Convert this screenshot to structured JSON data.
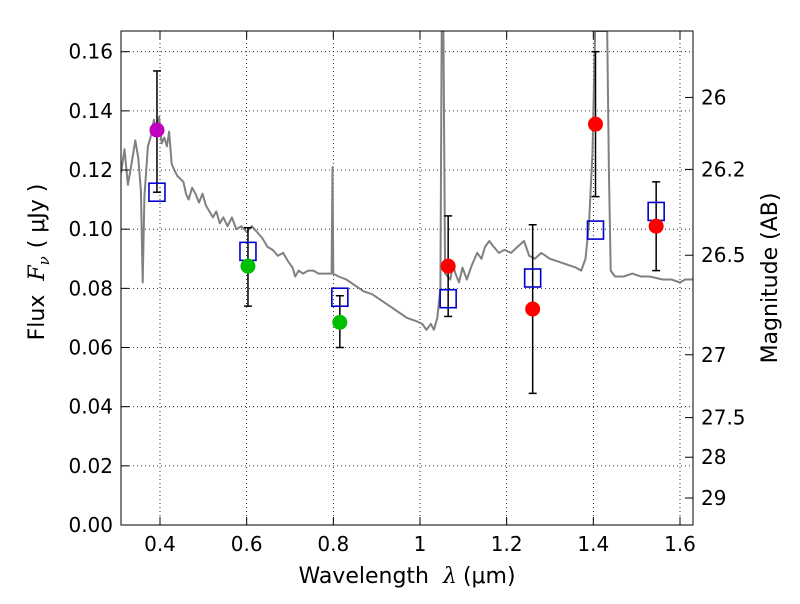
{
  "chart_data": {
    "type": "scatter",
    "xlabel_prefix": "Wavelength",
    "xlabel_var": "λ",
    "xlabel_unit": "(μm)",
    "ylabel_prefix": "Flux",
    "ylabel_var": "F",
    "ylabel_sub": "ν",
    "ylabel_unit": "( μJy )",
    "y2label": "Magnitude (AB)",
    "xlim": [
      0.31,
      1.63
    ],
    "ylim": [
      0.0,
      0.167
    ],
    "grid": true,
    "x_ticks": [
      {
        "v": 0.4,
        "label": "0.4"
      },
      {
        "v": 0.6,
        "label": "0.6"
      },
      {
        "v": 0.8,
        "label": "0.8"
      },
      {
        "v": 1.0,
        "label": "1"
      },
      {
        "v": 1.2,
        "label": "1.2"
      },
      {
        "v": 1.4,
        "label": "1.4"
      },
      {
        "v": 1.6,
        "label": "1.6"
      }
    ],
    "y_ticks": [
      {
        "v": 0.0,
        "label": "0.00"
      },
      {
        "v": 0.02,
        "label": "0.02"
      },
      {
        "v": 0.04,
        "label": "0.04"
      },
      {
        "v": 0.06,
        "label": "0.06"
      },
      {
        "v": 0.08,
        "label": "0.08"
      },
      {
        "v": 0.1,
        "label": "0.10"
      },
      {
        "v": 0.12,
        "label": "0.12"
      },
      {
        "v": 0.14,
        "label": "0.14"
      },
      {
        "v": 0.16,
        "label": "0.16"
      }
    ],
    "mag_ticks": [
      {
        "mag": 26,
        "label": "26"
      },
      {
        "mag": 26.2,
        "label": "26.2"
      },
      {
        "mag": 26.5,
        "label": "26.5"
      },
      {
        "mag": 27,
        "label": "27"
      },
      {
        "mag": 27.5,
        "label": "27.5"
      },
      {
        "mag": 28,
        "label": "28"
      },
      {
        "mag": 29,
        "label": "29"
      }
    ],
    "observed_points": [
      {
        "x": 0.393,
        "y": 0.1335,
        "err_lo": 0.021,
        "err_hi": 0.02,
        "color": "#bf00bf"
      },
      {
        "x": 0.603,
        "y": 0.0875,
        "err_lo": 0.0135,
        "err_hi": 0.013,
        "color": "#00bf00"
      },
      {
        "x": 0.815,
        "y": 0.0685,
        "err_lo": 0.0085,
        "err_hi": 0.009,
        "color": "#00bf00"
      },
      {
        "x": 1.065,
        "y": 0.0875,
        "err_lo": 0.017,
        "err_hi": 0.017,
        "color": "#ff0000"
      },
      {
        "x": 1.26,
        "y": 0.073,
        "err_lo": 0.0285,
        "err_hi": 0.0285,
        "color": "#ff0000"
      },
      {
        "x": 1.405,
        "y": 0.1355,
        "err_lo": 0.0245,
        "err_hi": 0.0245,
        "color": "#ff0000"
      },
      {
        "x": 1.545,
        "y": 0.101,
        "err_lo": 0.015,
        "err_hi": 0.015,
        "color": "#ff0000"
      }
    ],
    "model_points": [
      {
        "x": 0.393,
        "y": 0.1125
      },
      {
        "x": 0.603,
        "y": 0.0925
      },
      {
        "x": 0.815,
        "y": 0.077
      },
      {
        "x": 1.065,
        "y": 0.0765
      },
      {
        "x": 1.26,
        "y": 0.0835
      },
      {
        "x": 1.405,
        "y": 0.0997
      },
      {
        "x": 1.545,
        "y": 0.106
      }
    ],
    "template_sed": [
      [
        0.31,
        0.119
      ],
      [
        0.318,
        0.127
      ],
      [
        0.326,
        0.115
      ],
      [
        0.333,
        0.121
      ],
      [
        0.343,
        0.13
      ],
      [
        0.35,
        0.124
      ],
      [
        0.356,
        0.113
      ],
      [
        0.36,
        0.082
      ],
      [
        0.364,
        0.111
      ],
      [
        0.372,
        0.128
      ],
      [
        0.38,
        0.132
      ],
      [
        0.386,
        0.137
      ],
      [
        0.392,
        0.133
      ],
      [
        0.398,
        0.138
      ],
      [
        0.404,
        0.129
      ],
      [
        0.41,
        0.131
      ],
      [
        0.416,
        0.128
      ],
      [
        0.421,
        0.133
      ],
      [
        0.427,
        0.122
      ],
      [
        0.433,
        0.12
      ],
      [
        0.44,
        0.118
      ],
      [
        0.447,
        0.117
      ],
      [
        0.454,
        0.116
      ],
      [
        0.46,
        0.112
      ],
      [
        0.466,
        0.11
      ],
      [
        0.474,
        0.114
      ],
      [
        0.482,
        0.112
      ],
      [
        0.49,
        0.109
      ],
      [
        0.498,
        0.112
      ],
      [
        0.506,
        0.108
      ],
      [
        0.514,
        0.106
      ],
      [
        0.522,
        0.104
      ],
      [
        0.53,
        0.106
      ],
      [
        0.538,
        0.102
      ],
      [
        0.546,
        0.104
      ],
      [
        0.556,
        0.101
      ],
      [
        0.566,
        0.104
      ],
      [
        0.576,
        0.1
      ],
      [
        0.588,
        0.101
      ],
      [
        0.6,
        0.099
      ],
      [
        0.612,
        0.101
      ],
      [
        0.624,
        0.099
      ],
      [
        0.636,
        0.097
      ],
      [
        0.648,
        0.094
      ],
      [
        0.66,
        0.093
      ],
      [
        0.672,
        0.091
      ],
      [
        0.684,
        0.092
      ],
      [
        0.696,
        0.089
      ],
      [
        0.706,
        0.087
      ],
      [
        0.712,
        0.084
      ],
      [
        0.72,
        0.086
      ],
      [
        0.73,
        0.085
      ],
      [
        0.742,
        0.086
      ],
      [
        0.754,
        0.086
      ],
      [
        0.766,
        0.085
      ],
      [
        0.778,
        0.085
      ],
      [
        0.79,
        0.085
      ],
      [
        0.796,
        0.085
      ],
      [
        0.798,
        0.121
      ],
      [
        0.8,
        0.085
      ],
      [
        0.812,
        0.084
      ],
      [
        0.83,
        0.083
      ],
      [
        0.85,
        0.081
      ],
      [
        0.87,
        0.079
      ],
      [
        0.89,
        0.078
      ],
      [
        0.91,
        0.076
      ],
      [
        0.93,
        0.074
      ],
      [
        0.95,
        0.072
      ],
      [
        0.97,
        0.07
      ],
      [
        0.99,
        0.069
      ],
      [
        1.005,
        0.068
      ],
      [
        1.015,
        0.066
      ],
      [
        1.025,
        0.068
      ],
      [
        1.032,
        0.066
      ],
      [
        1.04,
        0.07
      ],
      [
        1.047,
        0.08
      ],
      [
        1.05,
        0.167
      ],
      [
        1.054,
        0.167
      ],
      [
        1.058,
        0.085
      ],
      [
        1.064,
        0.084
      ],
      [
        1.07,
        0.083
      ],
      [
        1.076,
        0.088
      ],
      [
        1.082,
        0.085
      ],
      [
        1.09,
        0.082
      ],
      [
        1.098,
        0.087
      ],
      [
        1.108,
        0.083
      ],
      [
        1.12,
        0.088
      ],
      [
        1.132,
        0.092
      ],
      [
        1.142,
        0.09
      ],
      [
        1.15,
        0.094
      ],
      [
        1.16,
        0.096
      ],
      [
        1.17,
        0.094
      ],
      [
        1.182,
        0.092
      ],
      [
        1.195,
        0.093
      ],
      [
        1.21,
        0.092
      ],
      [
        1.225,
        0.094
      ],
      [
        1.24,
        0.096
      ],
      [
        1.252,
        0.091
      ],
      [
        1.265,
        0.09
      ],
      [
        1.28,
        0.092
      ],
      [
        1.3,
        0.09
      ],
      [
        1.32,
        0.089
      ],
      [
        1.34,
        0.088
      ],
      [
        1.36,
        0.087
      ],
      [
        1.372,
        0.086
      ],
      [
        1.382,
        0.09
      ],
      [
        1.39,
        0.102
      ],
      [
        1.398,
        0.126
      ],
      [
        1.404,
        0.167
      ],
      [
        1.432,
        0.167
      ],
      [
        1.436,
        0.12
      ],
      [
        1.44,
        0.086
      ],
      [
        1.45,
        0.084
      ],
      [
        1.47,
        0.084
      ],
      [
        1.49,
        0.085
      ],
      [
        1.51,
        0.084
      ],
      [
        1.53,
        0.084
      ],
      [
        1.56,
        0.083
      ],
      [
        1.58,
        0.083
      ],
      [
        1.6,
        0.082
      ],
      [
        1.612,
        0.083
      ],
      [
        1.63,
        0.083
      ]
    ]
  }
}
